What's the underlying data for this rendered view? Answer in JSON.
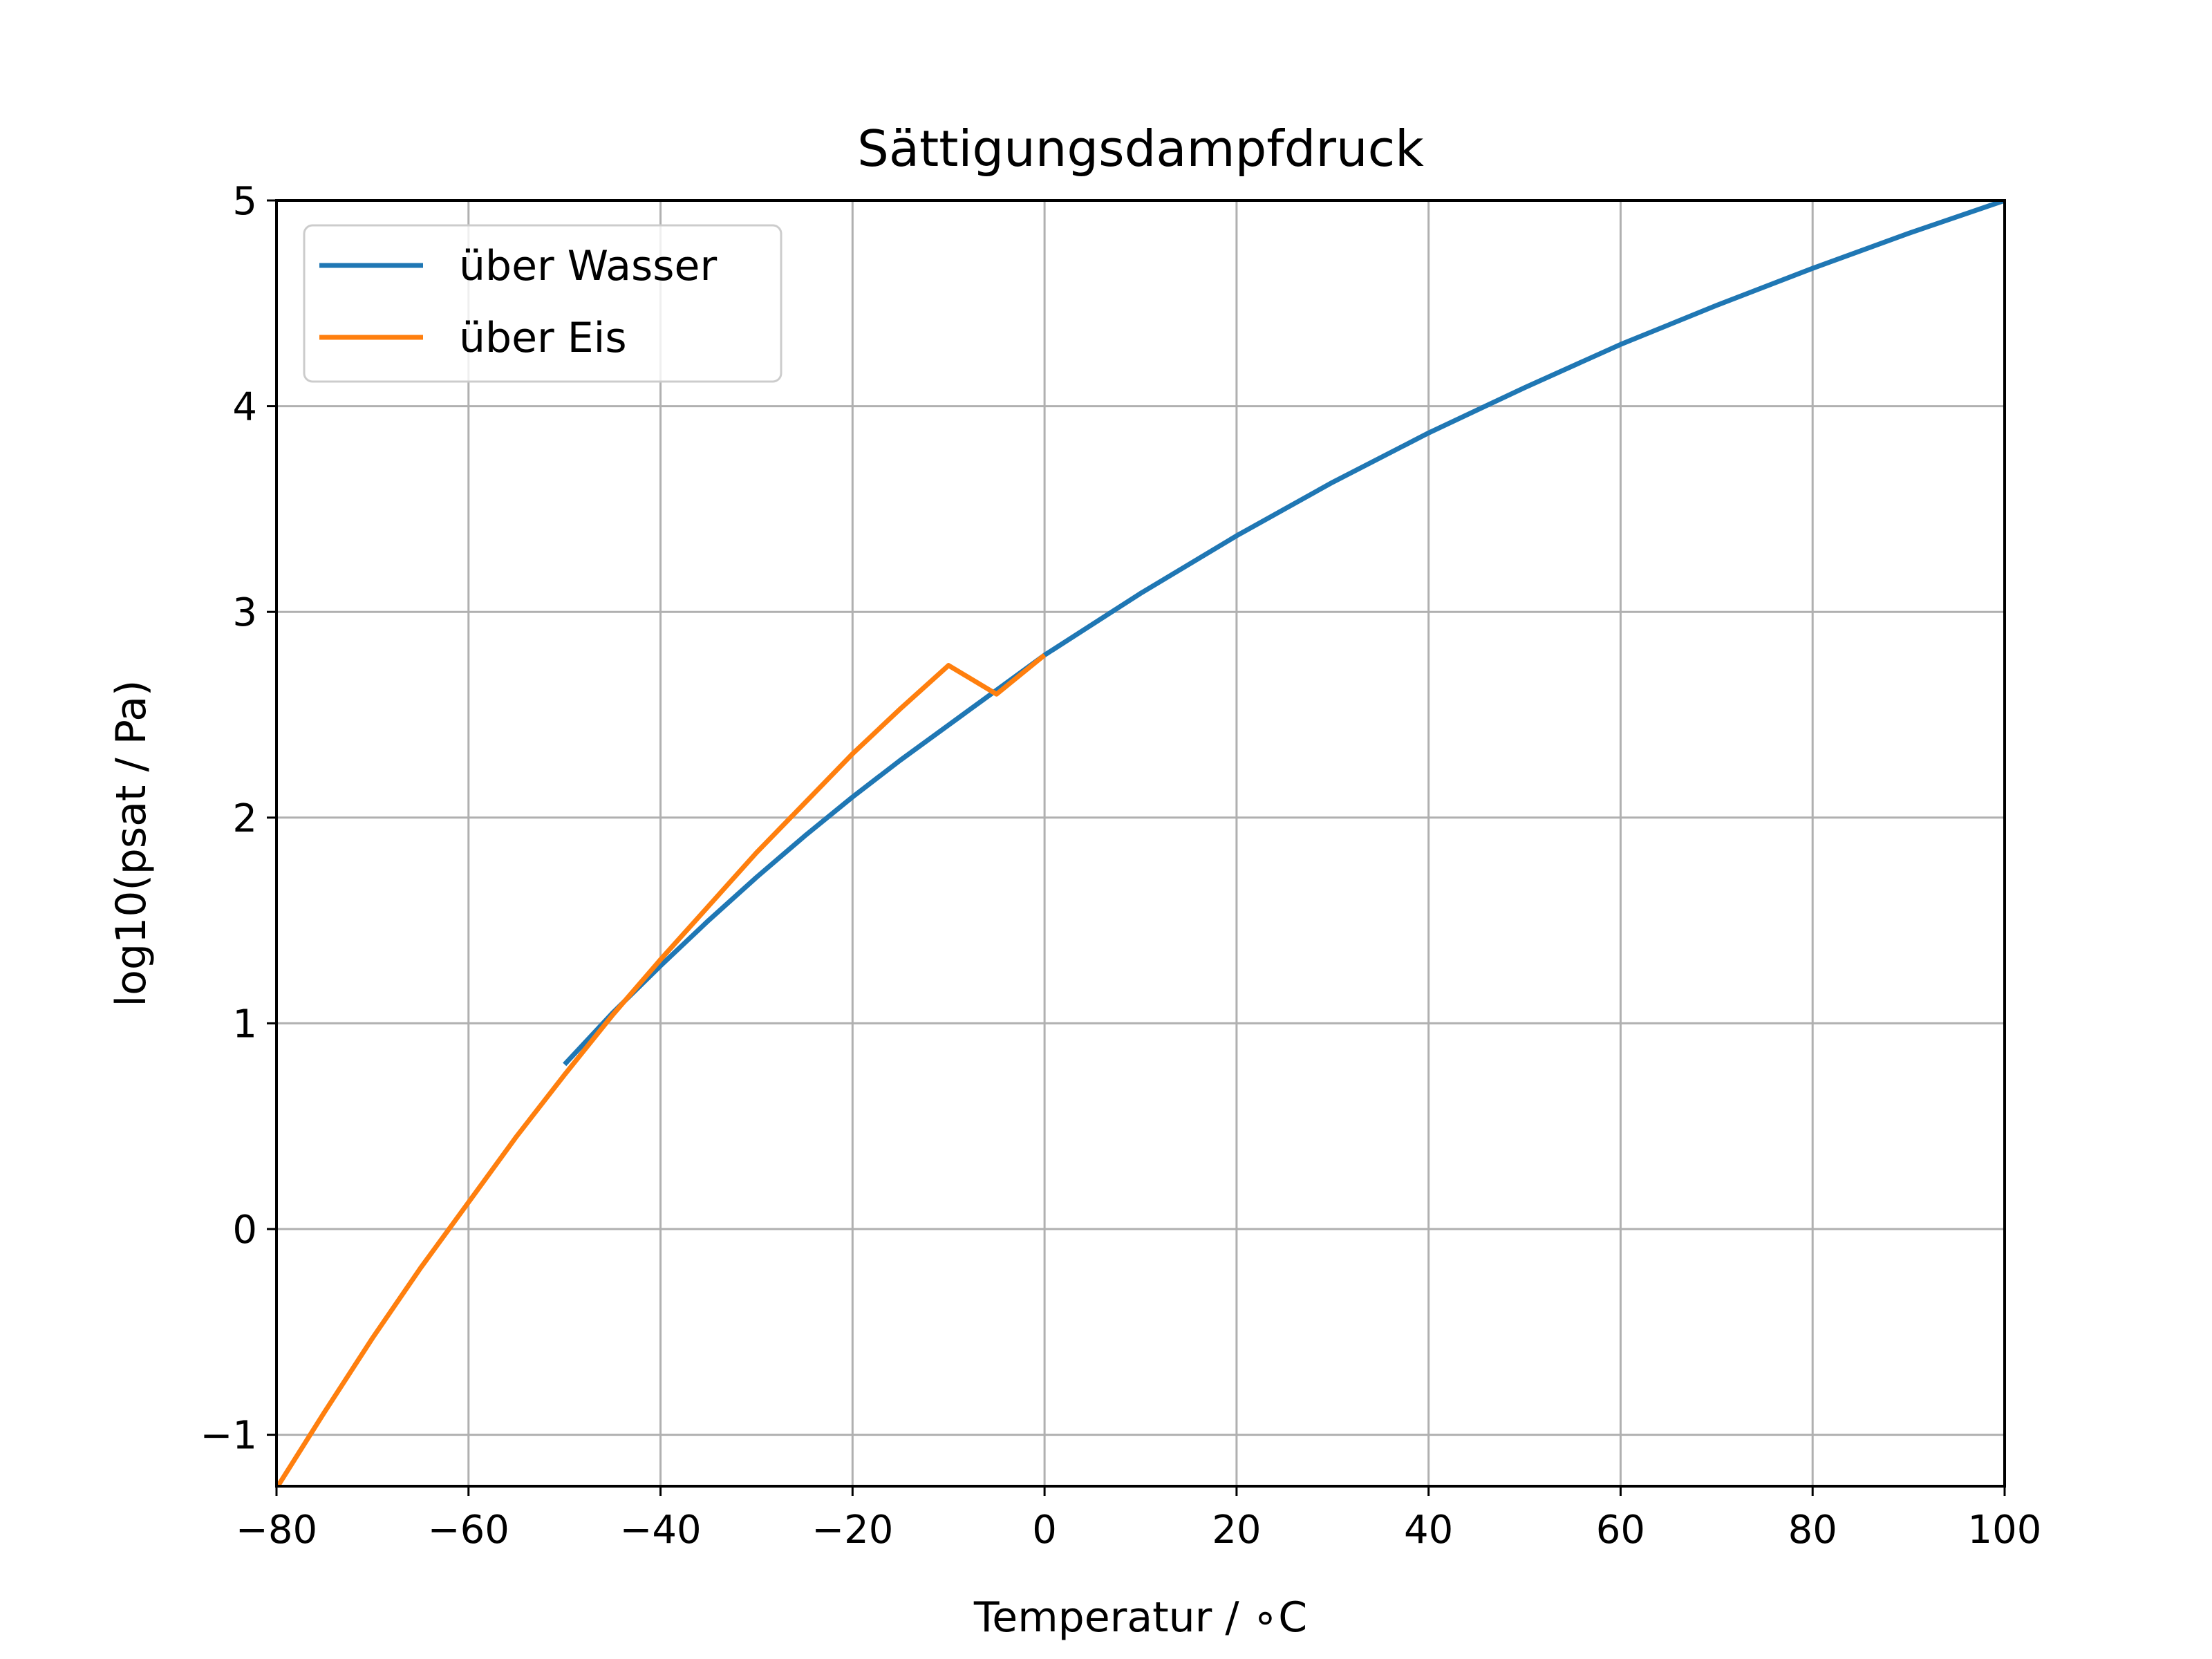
{
  "chart_data": {
    "type": "line",
    "title": "Sättigungsdampfdruck",
    "xlabel": "Temperatur / ∘C",
    "ylabel": "log10(psat / Pa)",
    "xlim": [
      -80,
      100
    ],
    "ylim": [
      -1.25,
      5
    ],
    "xticks": [
      -80,
      -60,
      -40,
      -20,
      0,
      20,
      40,
      60,
      80,
      100
    ],
    "xtick_labels": [
      "−80",
      "−60",
      "−40",
      "−20",
      "0",
      "20",
      "40",
      "60",
      "80",
      "100"
    ],
    "yticks": [
      -1,
      0,
      1,
      2,
      3,
      4,
      5
    ],
    "ytick_labels": [
      "−1",
      "0",
      "1",
      "2",
      "3",
      "4",
      "5"
    ],
    "grid": true,
    "legend_position": "top-left",
    "series": [
      {
        "name": "über Wasser",
        "color": "#1f77b4",
        "x": [
          -50,
          -45,
          -40,
          -35,
          -30,
          -25,
          -20,
          -15,
          -10,
          -5,
          0,
          10,
          20,
          30,
          40,
          50,
          60,
          70,
          80,
          90,
          100
        ],
        "y": [
          0.8,
          1.05,
          1.28,
          1.5,
          1.71,
          1.91,
          2.1,
          2.28,
          2.45,
          2.62,
          2.79,
          3.09,
          3.37,
          3.63,
          3.87,
          4.09,
          4.3,
          4.49,
          4.67,
          4.84,
          5.0
        ]
      },
      {
        "name": "über Eis",
        "color": "#ff7f0e",
        "x": [
          -80,
          -75,
          -70,
          -65,
          -60,
          -55,
          -50,
          -45,
          -40,
          -35,
          -30,
          -25,
          -20,
          -15,
          -10,
          -5,
          0
        ],
        "y": [
          -1.26,
          -0.89,
          -0.53,
          -0.19,
          0.13,
          0.45,
          0.75,
          1.04,
          1.31,
          1.57,
          1.83,
          2.07,
          2.31,
          2.53,
          2.74,
          2.96,
          2.79
        ]
      }
    ]
  }
}
